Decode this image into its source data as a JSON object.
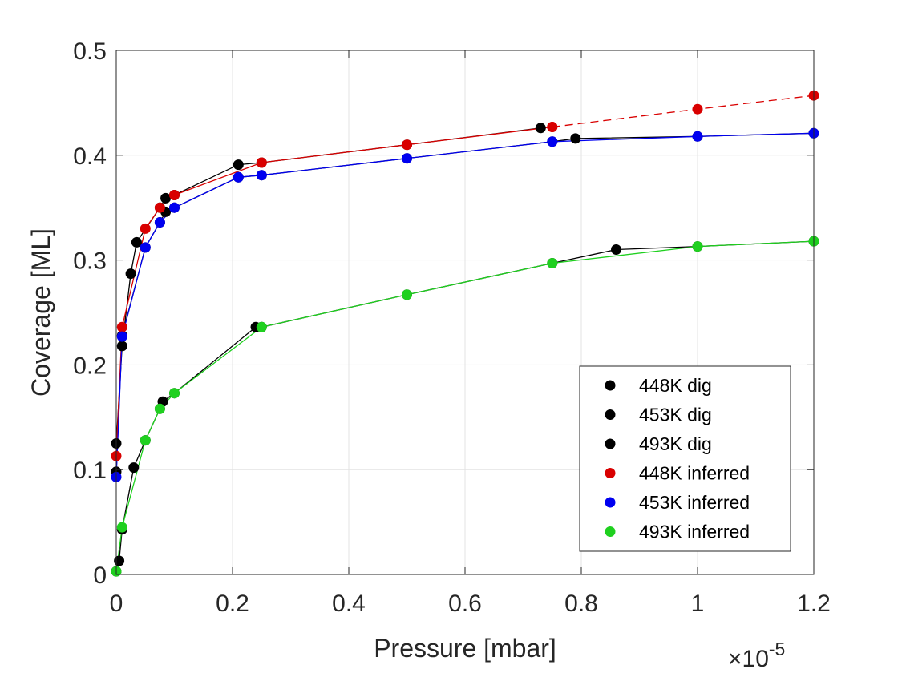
{
  "chart_data": {
    "type": "line",
    "xlabel": "Pressure [mbar]",
    "ylabel": "Coverage [ML]",
    "x_exponent_label": "×10",
    "x_exponent_power": "-5",
    "x_scale": 1e-05,
    "xlim": [
      0,
      1.2
    ],
    "ylim": [
      0,
      0.5
    ],
    "x_ticks": [
      0,
      0.2,
      0.4,
      0.6,
      0.8,
      1,
      1.2
    ],
    "x_tick_labels": [
      "0",
      "0.2",
      "0.4",
      "0.6",
      "0.8",
      "1",
      "1.2"
    ],
    "y_ticks": [
      0,
      0.1,
      0.2,
      0.3,
      0.4,
      0.5
    ],
    "y_tick_labels": [
      "0",
      "0.1",
      "0.2",
      "0.3",
      "0.4",
      "0.5"
    ],
    "grid": true,
    "legend_position": "lower-right",
    "series": [
      {
        "name": "448K dig",
        "color": "#000000",
        "line": "solid",
        "x": [
          0.0,
          0.01,
          0.025,
          0.035,
          0.075,
          0.085,
          0.1,
          0.21,
          0.25,
          0.5,
          0.73
        ],
        "y": [
          0.125,
          0.218,
          0.287,
          0.317,
          0.35,
          0.359,
          0.362,
          0.391,
          0.393,
          0.41,
          0.426
        ]
      },
      {
        "name": "453K dig",
        "color": "#000000",
        "line": "solid",
        "x": [
          0.0,
          0.01,
          0.05,
          0.075,
          0.085,
          0.1,
          0.21,
          0.25,
          0.5,
          0.75,
          0.79,
          1.0,
          1.2
        ],
        "y": [
          0.098,
          0.228,
          0.312,
          0.336,
          0.346,
          0.35,
          0.379,
          0.381,
          0.397,
          0.413,
          0.416,
          0.418,
          0.421
        ]
      },
      {
        "name": "493K dig",
        "color": "#000000",
        "line": "solid",
        "x": [
          0.0,
          0.005,
          0.01,
          0.03,
          0.05,
          0.075,
          0.08,
          0.1,
          0.24,
          0.25,
          0.5,
          0.75,
          0.86,
          1.0,
          1.2
        ],
        "y": [
          0.003,
          0.013,
          0.043,
          0.102,
          0.128,
          0.158,
          0.165,
          0.173,
          0.236,
          0.236,
          0.267,
          0.297,
          0.31,
          0.313,
          0.318
        ]
      },
      {
        "name": "448K inferred",
        "color": "#d90000",
        "line": "solid",
        "x": [
          0.0,
          0.01,
          0.05,
          0.075,
          0.1,
          0.25,
          0.5,
          0.75
        ],
        "y": [
          0.113,
          0.236,
          0.33,
          0.35,
          0.362,
          0.393,
          0.41,
          0.427
        ]
      },
      {
        "name": "448K inferred extrapolation",
        "color": "#d90000",
        "line": "dashed",
        "x": [
          0.75,
          1.0,
          1.2
        ],
        "y": [
          0.427,
          0.444,
          0.457
        ]
      },
      {
        "name": "453K inferred",
        "color": "#0000f0",
        "line": "solid",
        "x": [
          0.0,
          0.01,
          0.05,
          0.075,
          0.1,
          0.21,
          0.25,
          0.5,
          0.75,
          1.0,
          1.2
        ],
        "y": [
          0.093,
          0.227,
          0.312,
          0.336,
          0.35,
          0.379,
          0.381,
          0.397,
          0.413,
          0.418,
          0.421
        ]
      },
      {
        "name": "493K inferred",
        "color": "#1fd01f",
        "line": "solid",
        "x": [
          0.0,
          0.01,
          0.05,
          0.075,
          0.1,
          0.25,
          0.5,
          0.75,
          1.0,
          1.2
        ],
        "y": [
          0.003,
          0.045,
          0.128,
          0.158,
          0.173,
          0.236,
          0.267,
          0.297,
          0.313,
          0.318
        ]
      }
    ],
    "legend": [
      {
        "label": "448K dig",
        "color": "#000000"
      },
      {
        "label": "453K dig",
        "color": "#000000"
      },
      {
        "label": "493K dig",
        "color": "#000000"
      },
      {
        "label": "448K inferred",
        "color": "#d90000"
      },
      {
        "label": "453K inferred",
        "color": "#0000f0"
      },
      {
        "label": "493K inferred",
        "color": "#1fd01f"
      }
    ]
  }
}
